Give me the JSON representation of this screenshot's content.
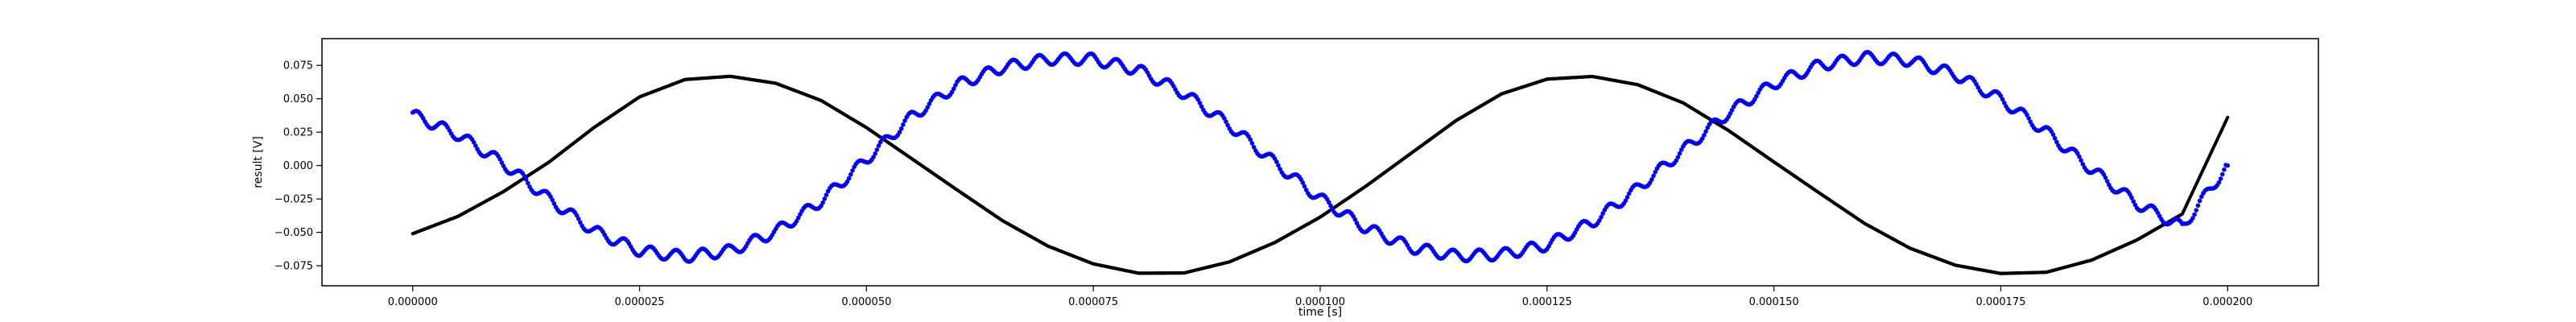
{
  "chart_data": {
    "type": "scatter",
    "title": "",
    "xlabel": "time [s]",
    "ylabel": "result [V]",
    "xlim": [
      -1e-05,
      0.00021
    ],
    "ylim": [
      -0.09,
      0.095
    ],
    "grid": false,
    "x_ticks": [
      {
        "value": 0.0,
        "label": "0.000000"
      },
      {
        "value": 2.5e-05,
        "label": "0.000025"
      },
      {
        "value": 5e-05,
        "label": "0.000050"
      },
      {
        "value": 7.5e-05,
        "label": "0.000075"
      },
      {
        "value": 0.0001,
        "label": "0.000100"
      },
      {
        "value": 0.000125,
        "label": "0.000125"
      },
      {
        "value": 0.00015,
        "label": "0.000150"
      },
      {
        "value": 0.000175,
        "label": "0.000175"
      },
      {
        "value": 0.0002,
        "label": "0.000200"
      }
    ],
    "y_ticks": [
      {
        "value": -0.075,
        "label": "−0.075"
      },
      {
        "value": -0.05,
        "label": "−0.050"
      },
      {
        "value": -0.025,
        "label": "−0.025"
      },
      {
        "value": 0.0,
        "label": "0.000"
      },
      {
        "value": 0.025,
        "label": "0.025"
      },
      {
        "value": 0.05,
        "label": "0.050"
      },
      {
        "value": 0.075,
        "label": "0.075"
      }
    ],
    "series": [
      {
        "color": "#000000",
        "x": [
          0.0,
          5e-06,
          1e-05,
          1.5e-05,
          2e-05,
          2.5e-05,
          3e-05,
          3.5e-05,
          4e-05,
          4.5e-05,
          5e-05,
          5.5e-05,
          6e-05,
          6.5e-05,
          7e-05,
          7.5e-05,
          8e-05,
          8.5e-05,
          9e-05,
          9.5e-05,
          0.0001,
          0.000105,
          0.00011,
          0.000115,
          0.00012,
          0.000125,
          0.00013,
          0.000135,
          0.00014,
          0.000145,
          0.00015,
          0.000155,
          0.00016,
          0.000165,
          0.00017,
          0.000175,
          0.00018,
          0.000185,
          0.00019,
          0.000195,
          0.0002
        ],
        "y": [
          -0.051,
          -0.038,
          -0.0195,
          0.0025,
          0.0286,
          0.0514,
          0.0644,
          0.0668,
          0.0616,
          0.0487,
          0.0284,
          0.0051,
          -0.0183,
          -0.0413,
          -0.0603,
          -0.0736,
          -0.0806,
          -0.0804,
          -0.0721,
          -0.0576,
          -0.0386,
          -0.0156,
          0.0091,
          0.0338,
          0.0537,
          0.0647,
          0.0667,
          0.0605,
          0.0469,
          0.0262,
          0.0027,
          -0.0205,
          -0.0434,
          -0.0619,
          -0.0746,
          -0.0808,
          -0.0799,
          -0.0708,
          -0.0557,
          -0.0363,
          0.036
        ]
      },
      {
        "color": "#0000ff",
        "x": [
          0.0,
          5e-06,
          1e-05,
          1.5e-05,
          2e-05,
          2.5e-05,
          3e-05,
          3.5e-05,
          4e-05,
          4.5e-05,
          5e-05,
          5.5e-05,
          6e-05,
          6.5e-05,
          7e-05,
          7.5e-05,
          8e-05,
          8.5e-05,
          9e-05,
          9.5e-05,
          0.0001,
          0.000105,
          0.00011,
          0.000115,
          0.00012,
          0.000125,
          0.00013,
          0.000135,
          0.00014,
          0.000145,
          0.00015,
          0.000155,
          0.00016,
          0.000165,
          0.00017,
          0.000175,
          0.00018,
          0.000185,
          0.00019,
          0.000195,
          0.0002
        ],
        "y": [
          0.038,
          0.023,
          0.0015,
          -0.025,
          -0.049,
          -0.0638,
          -0.0682,
          -0.0637,
          -0.0496,
          -0.0266,
          0.0046,
          0.0367,
          0.0604,
          0.0735,
          0.0797,
          0.0796,
          0.0715,
          0.0541,
          0.0303,
          0.002,
          -0.0247,
          -0.0466,
          -0.0613,
          -0.0676,
          -0.0666,
          -0.0595,
          -0.0424,
          -0.0171,
          0.0114,
          0.0395,
          0.0614,
          0.0751,
          0.0809,
          0.0787,
          0.0682,
          0.0495,
          0.0254,
          -0.0028,
          -0.0284,
          -0.0461,
          0.0
        ]
      }
    ]
  }
}
